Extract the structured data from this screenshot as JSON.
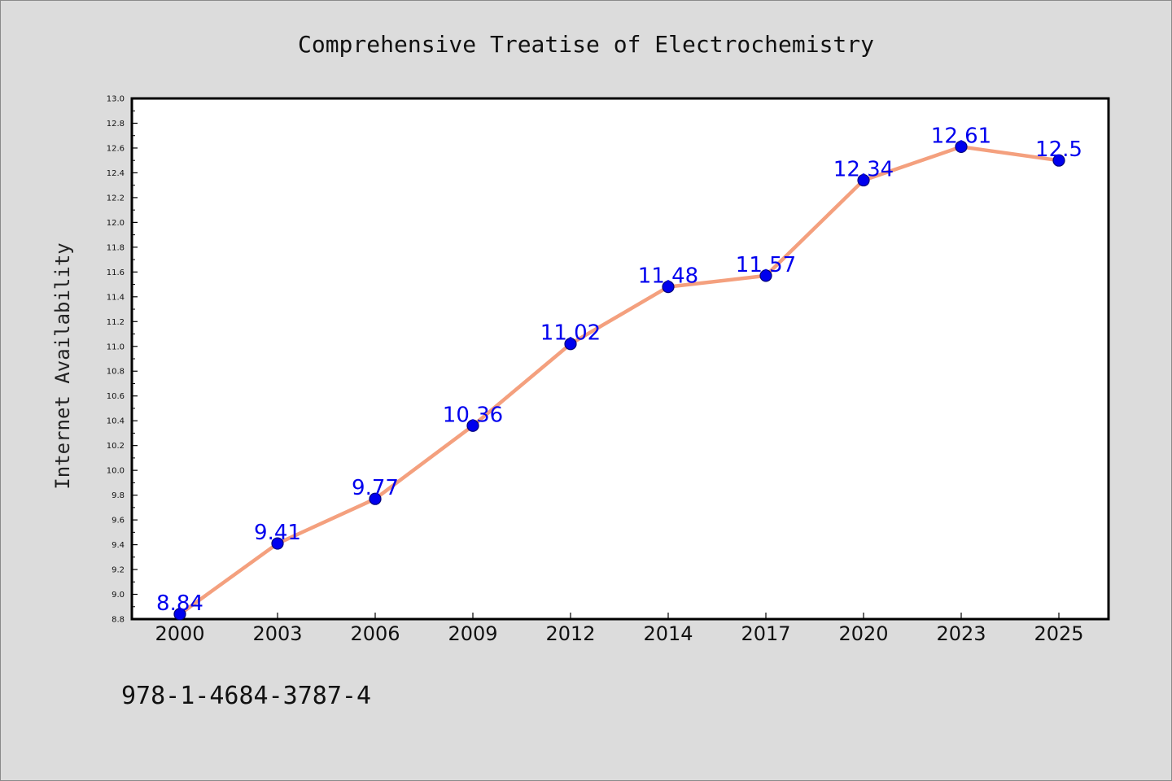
{
  "chart_data": {
    "type": "line",
    "title": "Comprehensive Treatise of Electrochemistry",
    "xlabel": "",
    "ylabel": "Internet Availability",
    "categories": [
      "2000",
      "2003",
      "2006",
      "2009",
      "2012",
      "2014",
      "2017",
      "2020",
      "2023",
      "2025"
    ],
    "series": [
      {
        "values": [
          8.84,
          9.41,
          9.77,
          10.36,
          11.02,
          11.48,
          11.57,
          12.34,
          12.61,
          12.5
        ],
        "labels": [
          "8.84",
          "9.41",
          "9.77",
          "10.36",
          "11.02",
          "11.48",
          "11.57",
          "12.34",
          "12.61",
          "12.5"
        ]
      }
    ],
    "ylim": [
      8.8,
      13.0
    ],
    "yticks": [
      "8.8",
      "9.0",
      "9.2",
      "9.4",
      "9.6",
      "9.8",
      "10.0",
      "10.2",
      "10.4",
      "10.6",
      "10.8",
      "11.0",
      "11.2",
      "11.4",
      "11.6",
      "11.8",
      "12.0",
      "12.2",
      "12.4",
      "12.6",
      "12.8",
      "13.0"
    ],
    "grid": false,
    "legend": "none",
    "footer_text": "978-1-4684-3787-4"
  },
  "colors": {
    "line": "#f4a07e",
    "marker_fill": "#0000ee",
    "marker_edge": "#00007a",
    "data_label": "#0000ee",
    "axis": "#000000"
  }
}
